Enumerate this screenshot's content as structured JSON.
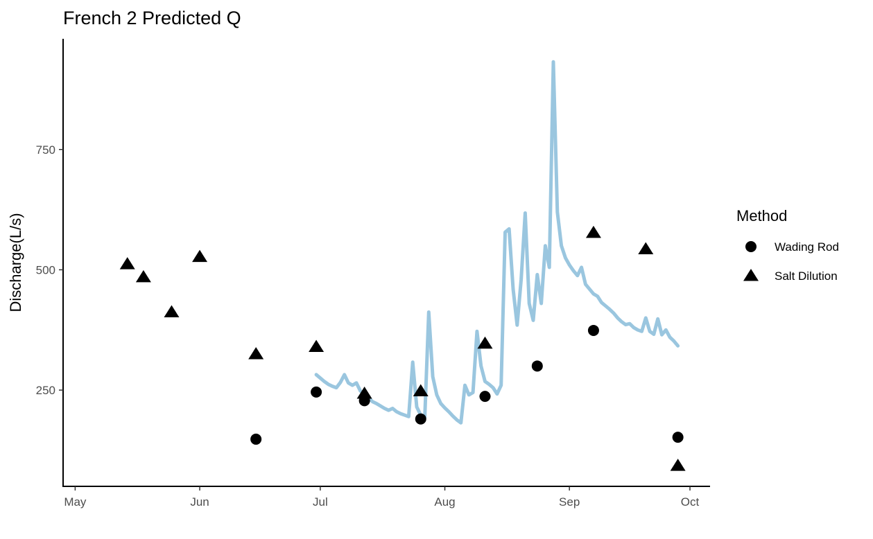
{
  "chart_data": {
    "type": "scatter",
    "title": "French 2 Predicted Q",
    "xlabel": "",
    "ylabel": "Discharge(L/s)",
    "x_axis": {
      "type": "date",
      "range": [
        "2020-04-28",
        "2020-10-06"
      ],
      "ticks": [
        {
          "date": "2020-05-01",
          "label": "May"
        },
        {
          "date": "2020-06-01",
          "label": "Jun"
        },
        {
          "date": "2020-07-01",
          "label": "Jul"
        },
        {
          "date": "2020-08-01",
          "label": "Aug"
        },
        {
          "date": "2020-09-01",
          "label": "Sep"
        },
        {
          "date": "2020-10-01",
          "label": "Oct"
        }
      ]
    },
    "y_axis": {
      "range": [
        50,
        980
      ],
      "ticks": [
        250,
        500,
        750
      ]
    },
    "legend": {
      "title": "Method",
      "position": "right",
      "items": [
        {
          "label": "Wading Rod",
          "shape": "circle"
        },
        {
          "label": "Salt Dilution",
          "shape": "triangle"
        }
      ]
    },
    "colors": {
      "predicted_line": "#9ac6df",
      "points": "#000000"
    },
    "series": [
      {
        "name": "Wading Rod",
        "shape": "circle",
        "points": [
          {
            "x": "2020-06-15",
            "y": 148
          },
          {
            "x": "2020-06-30",
            "y": 246
          },
          {
            "x": "2020-07-12",
            "y": 228
          },
          {
            "x": "2020-07-26",
            "y": 190
          },
          {
            "x": "2020-08-11",
            "y": 237
          },
          {
            "x": "2020-08-24",
            "y": 300
          },
          {
            "x": "2020-09-07",
            "y": 374
          },
          {
            "x": "2020-09-28",
            "y": 152
          }
        ]
      },
      {
        "name": "Salt Dilution",
        "shape": "triangle",
        "points": [
          {
            "x": "2020-05-14",
            "y": 512
          },
          {
            "x": "2020-05-18",
            "y": 485
          },
          {
            "x": "2020-05-25",
            "y": 412
          },
          {
            "x": "2020-06-01",
            "y": 527
          },
          {
            "x": "2020-06-15",
            "y": 325
          },
          {
            "x": "2020-06-30",
            "y": 340
          },
          {
            "x": "2020-07-12",
            "y": 243
          },
          {
            "x": "2020-07-26",
            "y": 248
          },
          {
            "x": "2020-08-11",
            "y": 347
          },
          {
            "x": "2020-09-07",
            "y": 577
          },
          {
            "x": "2020-09-20",
            "y": 543
          },
          {
            "x": "2020-09-28",
            "y": 93
          }
        ]
      },
      {
        "name": "",
        "shape": "line",
        "points": [
          {
            "x": "2020-06-30",
            "y": 282
          },
          {
            "x": "2020-07-01",
            "y": 275
          },
          {
            "x": "2020-07-02",
            "y": 268
          },
          {
            "x": "2020-07-03",
            "y": 262
          },
          {
            "x": "2020-07-04",
            "y": 258
          },
          {
            "x": "2020-07-05",
            "y": 255
          },
          {
            "x": "2020-07-06",
            "y": 266
          },
          {
            "x": "2020-07-07",
            "y": 282
          },
          {
            "x": "2020-07-08",
            "y": 265
          },
          {
            "x": "2020-07-09",
            "y": 260
          },
          {
            "x": "2020-07-10",
            "y": 265
          },
          {
            "x": "2020-07-11",
            "y": 248
          },
          {
            "x": "2020-07-12",
            "y": 242
          },
          {
            "x": "2020-07-13",
            "y": 234
          },
          {
            "x": "2020-07-14",
            "y": 226
          },
          {
            "x": "2020-07-15",
            "y": 222
          },
          {
            "x": "2020-07-16",
            "y": 217
          },
          {
            "x": "2020-07-17",
            "y": 212
          },
          {
            "x": "2020-07-18",
            "y": 208
          },
          {
            "x": "2020-07-19",
            "y": 212
          },
          {
            "x": "2020-07-20",
            "y": 205
          },
          {
            "x": "2020-07-21",
            "y": 201
          },
          {
            "x": "2020-07-22",
            "y": 198
          },
          {
            "x": "2020-07-23",
            "y": 195
          },
          {
            "x": "2020-07-24",
            "y": 308
          },
          {
            "x": "2020-07-25",
            "y": 215
          },
          {
            "x": "2020-07-26",
            "y": 198
          },
          {
            "x": "2020-07-27",
            "y": 193
          },
          {
            "x": "2020-07-28",
            "y": 412
          },
          {
            "x": "2020-07-29",
            "y": 278
          },
          {
            "x": "2020-07-30",
            "y": 240
          },
          {
            "x": "2020-07-31",
            "y": 222
          },
          {
            "x": "2020-08-01",
            "y": 213
          },
          {
            "x": "2020-08-02",
            "y": 205
          },
          {
            "x": "2020-08-03",
            "y": 196
          },
          {
            "x": "2020-08-04",
            "y": 188
          },
          {
            "x": "2020-08-05",
            "y": 182
          },
          {
            "x": "2020-08-06",
            "y": 260
          },
          {
            "x": "2020-08-07",
            "y": 240
          },
          {
            "x": "2020-08-08",
            "y": 245
          },
          {
            "x": "2020-08-09",
            "y": 372
          },
          {
            "x": "2020-08-10",
            "y": 300
          },
          {
            "x": "2020-08-11",
            "y": 268
          },
          {
            "x": "2020-08-12",
            "y": 262
          },
          {
            "x": "2020-08-13",
            "y": 255
          },
          {
            "x": "2020-08-14",
            "y": 242
          },
          {
            "x": "2020-08-15",
            "y": 260
          },
          {
            "x": "2020-08-16",
            "y": 578
          },
          {
            "x": "2020-08-17",
            "y": 585
          },
          {
            "x": "2020-08-18",
            "y": 460
          },
          {
            "x": "2020-08-19",
            "y": 385
          },
          {
            "x": "2020-08-20",
            "y": 480
          },
          {
            "x": "2020-08-21",
            "y": 618
          },
          {
            "x": "2020-08-22",
            "y": 430
          },
          {
            "x": "2020-08-23",
            "y": 395
          },
          {
            "x": "2020-08-24",
            "y": 490
          },
          {
            "x": "2020-08-25",
            "y": 430
          },
          {
            "x": "2020-08-26",
            "y": 550
          },
          {
            "x": "2020-08-27",
            "y": 505
          },
          {
            "x": "2020-08-28",
            "y": 932
          },
          {
            "x": "2020-08-29",
            "y": 620
          },
          {
            "x": "2020-08-30",
            "y": 550
          },
          {
            "x": "2020-08-31",
            "y": 525
          },
          {
            "x": "2020-09-01",
            "y": 510
          },
          {
            "x": "2020-09-02",
            "y": 498
          },
          {
            "x": "2020-09-03",
            "y": 488
          },
          {
            "x": "2020-09-04",
            "y": 505
          },
          {
            "x": "2020-09-05",
            "y": 470
          },
          {
            "x": "2020-09-06",
            "y": 460
          },
          {
            "x": "2020-09-07",
            "y": 450
          },
          {
            "x": "2020-09-08",
            "y": 445
          },
          {
            "x": "2020-09-09",
            "y": 432
          },
          {
            "x": "2020-09-10",
            "y": 425
          },
          {
            "x": "2020-09-11",
            "y": 418
          },
          {
            "x": "2020-09-12",
            "y": 410
          },
          {
            "x": "2020-09-13",
            "y": 400
          },
          {
            "x": "2020-09-14",
            "y": 392
          },
          {
            "x": "2020-09-15",
            "y": 386
          },
          {
            "x": "2020-09-16",
            "y": 388
          },
          {
            "x": "2020-09-17",
            "y": 380
          },
          {
            "x": "2020-09-18",
            "y": 375
          },
          {
            "x": "2020-09-19",
            "y": 372
          },
          {
            "x": "2020-09-20",
            "y": 400
          },
          {
            "x": "2020-09-21",
            "y": 372
          },
          {
            "x": "2020-09-22",
            "y": 366
          },
          {
            "x": "2020-09-23",
            "y": 398
          },
          {
            "x": "2020-09-24",
            "y": 365
          },
          {
            "x": "2020-09-25",
            "y": 375
          },
          {
            "x": "2020-09-26",
            "y": 360
          },
          {
            "x": "2020-09-27",
            "y": 352
          },
          {
            "x": "2020-09-28",
            "y": 342
          }
        ]
      }
    ]
  }
}
